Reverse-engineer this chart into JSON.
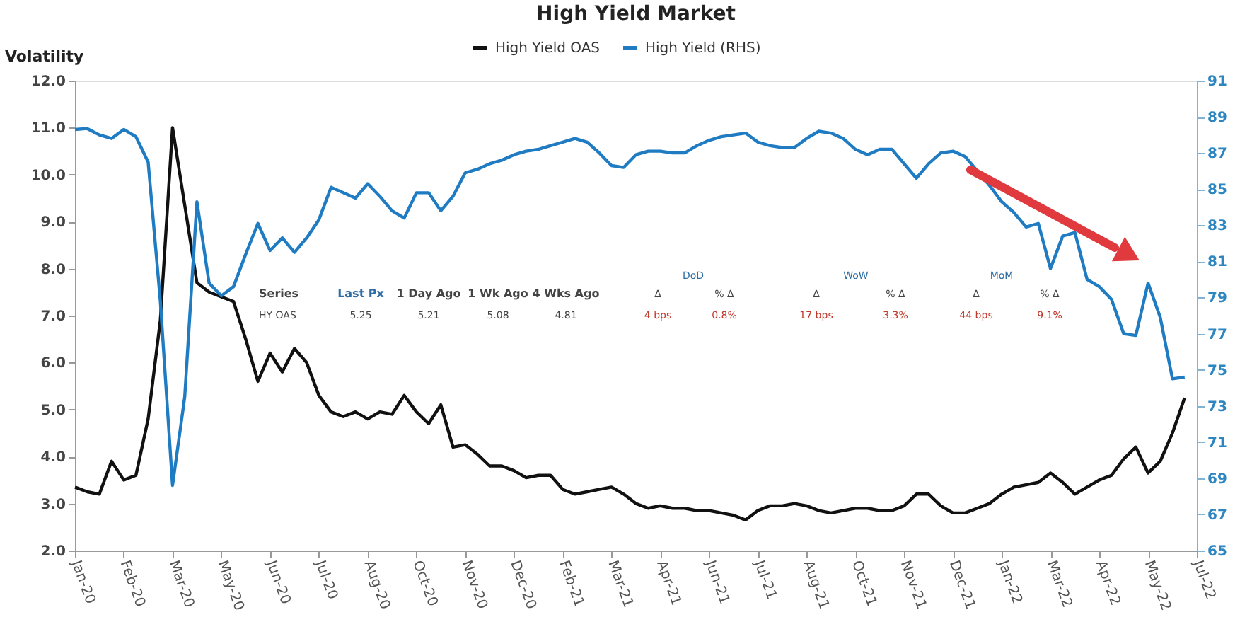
{
  "chart_data": {
    "type": "line",
    "title": "High Yield Market",
    "ylabel": "Volatility",
    "legend": "top",
    "grid": false,
    "marker": "none",
    "line_style": "solid",
    "categories": [
      "Jan-20",
      null,
      null,
      null,
      "Feb-20",
      null,
      null,
      null,
      "Mar-20",
      null,
      null,
      null,
      "May-20",
      null,
      null,
      null,
      "Jun-20",
      null,
      null,
      null,
      "Jul-20",
      null,
      null,
      null,
      "Aug-20",
      null,
      null,
      null,
      "Oct-20",
      null,
      null,
      null,
      "Nov-20",
      null,
      null,
      null,
      "Dec-20",
      null,
      null,
      null,
      "Feb-21",
      null,
      null,
      null,
      "Mar-21",
      null,
      null,
      null,
      "Apr-21",
      null,
      null,
      null,
      "Jun-21",
      null,
      null,
      null,
      "Jul-21",
      null,
      null,
      null,
      "Aug-21",
      null,
      null,
      null,
      "Oct-21",
      null,
      null,
      null,
      "Nov-21",
      null,
      null,
      null,
      "Dec-21",
      null,
      null,
      null,
      "Jan-22",
      null,
      null,
      null,
      "Mar-22",
      null,
      null,
      null,
      "Apr-22",
      null,
      null,
      null,
      "May-22",
      null,
      null,
      null,
      "Jul-22"
    ],
    "ylim": [
      2,
      12
    ],
    "yticks": [
      {
        "value": 2,
        "label": "2.0"
      },
      {
        "value": 3,
        "label": "3.0"
      },
      {
        "value": 4,
        "label": "4.0"
      },
      {
        "value": 5,
        "label": "5.0"
      },
      {
        "value": 6,
        "label": "6.0"
      },
      {
        "value": 7,
        "label": "7.0"
      },
      {
        "value": 8,
        "label": "8.0"
      },
      {
        "value": 9,
        "label": "9.0"
      },
      {
        "value": 10,
        "label": "10.0"
      },
      {
        "value": 11,
        "label": "11.0"
      },
      {
        "value": 12,
        "label": "12.0"
      }
    ],
    "y2lim": [
      65,
      91
    ],
    "y2ticks": [
      65,
      67,
      69,
      71,
      73,
      75,
      77,
      79,
      81,
      83,
      85,
      87,
      89,
      91
    ],
    "annotations": [
      "Series",
      "Last Px",
      "1 Day Ago",
      "1 Wk Ago",
      "4 Wks Ago",
      "HY OAS",
      "5.25",
      "5.21",
      "5.08",
      "4.81",
      "DoD",
      "Δ",
      "% Δ",
      "4 bps",
      "0.8%",
      "WoW",
      "Δ",
      "% Δ",
      "17 bps",
      "3.3%",
      "MoM",
      "Δ",
      "% Δ",
      "44 bps",
      "9.1%"
    ],
    "series": [
      {
        "name": "High Yield OAS",
        "color": "#111111",
        "values": [
          3.35,
          3.25,
          3.2,
          3.9,
          3.5,
          3.6,
          4.8,
          6.9,
          11.0,
          9.35,
          7.7,
          7.5,
          7.4,
          7.3,
          6.5,
          5.6,
          6.2,
          5.8,
          6.3,
          6.0,
          5.3,
          4.95,
          4.85,
          4.95,
          4.8,
          4.95,
          4.9,
          5.3,
          4.95,
          4.7,
          5.1,
          4.2,
          4.25,
          4.05,
          3.8,
          3.8,
          3.7,
          3.55,
          3.6,
          3.6,
          3.3,
          3.2,
          3.25,
          3.3,
          3.35,
          3.2,
          3.0,
          2.9,
          2.95,
          2.9,
          2.9,
          2.85,
          2.85,
          2.8,
          2.75,
          2.65,
          2.85,
          2.95,
          2.95,
          3.0,
          2.95,
          2.85,
          2.8,
          2.85,
          2.9,
          2.9,
          2.85,
          2.85,
          2.95,
          3.2,
          3.2,
          2.95,
          2.8,
          2.8,
          2.9,
          3.0,
          3.2,
          3.35,
          3.4,
          3.45,
          3.65,
          3.45,
          3.2,
          3.35,
          3.5,
          3.6,
          3.95,
          4.2,
          3.65,
          3.9,
          4.5,
          5.25,
          null
        ]
      },
      {
        "name": "High Yield (RHS)",
        "color": "#1f7bc2",
        "axis": "y2",
        "values": [
          88.3,
          88.35,
          88.0,
          87.8,
          88.3,
          87.9,
          86.5,
          78.8,
          68.6,
          73.5,
          84.3,
          79.8,
          79.1,
          79.6,
          81.4,
          83.1,
          81.6,
          82.3,
          81.5,
          82.3,
          83.3,
          85.1,
          84.8,
          84.5,
          85.3,
          84.6,
          83.8,
          83.4,
          84.8,
          84.8,
          83.8,
          84.6,
          85.9,
          86.1,
          86.4,
          86.6,
          86.9,
          87.1,
          87.2,
          87.4,
          87.6,
          87.8,
          87.6,
          87.0,
          86.3,
          86.2,
          86.9,
          87.1,
          87.1,
          87.0,
          87.0,
          87.4,
          87.7,
          87.9,
          88.0,
          88.1,
          87.6,
          87.4,
          87.3,
          87.3,
          87.8,
          88.2,
          88.1,
          87.8,
          87.2,
          86.9,
          87.2,
          87.2,
          86.4,
          85.6,
          86.4,
          87.0,
          87.1,
          86.8,
          86.0,
          85.2,
          84.3,
          83.7,
          82.9,
          83.1,
          80.6,
          82.4,
          82.6,
          80.0,
          79.6,
          78.9,
          77.0,
          76.9,
          79.8,
          77.9,
          74.5,
          74.6,
          null
        ]
      }
    ]
  }
}
